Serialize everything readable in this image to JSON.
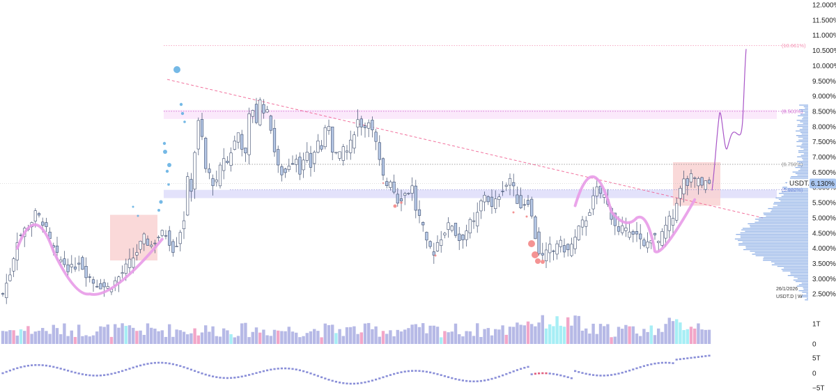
{
  "symbol_badge": "USDT.D",
  "last_price_label": "6.130%",
  "stamp": {
    "date": "26/1/2026",
    "ticker_interval": "USDT.D | W"
  },
  "colors": {
    "up_fill": "#ffffff",
    "candle_outline": "#3b4a6b",
    "down_fill": "#b6c8e6",
    "trendline": "#f06292",
    "highlight_curve": "#e89be8",
    "projection": "#a855c7",
    "zone_fill": "#f9d2d2",
    "band_fill": "#e3e2fb",
    "volume_bar": "#b6b9e6",
    "volume_pink": "#f2a6c8",
    "volume_cyan": "#a7eef5",
    "profile": "#5f8fdc",
    "dot_blue": "#5dade2",
    "dot_red": "#f28080"
  },
  "chart_data": [
    {
      "type": "candlestick",
      "title": "",
      "ylabel": "",
      "y_scale": "percent",
      "ylim": [
        2.0,
        12.0
      ],
      "y_ticks": [
        "12.000%",
        "11.500%",
        "11.000%",
        "10.500%",
        "10.000%",
        "9.500%",
        "9.000%",
        "8.500%",
        "8.000%",
        "7.500%",
        "7.000%",
        "6.500%",
        "6.000%",
        "5.500%",
        "5.000%",
        "4.500%",
        "4.000%",
        "3.500%",
        "3.000%",
        "2.500%"
      ],
      "y_tick_values": [
        12.0,
        11.5,
        11.0,
        10.5,
        10.0,
        9.5,
        9.0,
        8.5,
        8.0,
        7.5,
        7.0,
        6.5,
        6.0,
        5.5,
        5.0,
        4.5,
        4.0,
        3.5,
        3.0,
        2.5
      ],
      "horizontal_levels": [
        {
          "label": "(10.661%)",
          "value": 10.661,
          "style": "dotted",
          "color": "#f48fb1"
        },
        {
          "label": "(8.503%)",
          "value": 8.503,
          "style": "dotted",
          "color": "#cf6ad1"
        },
        {
          "label": "(6.759%)",
          "value": 6.759,
          "style": "dotted",
          "color": "#888888"
        },
        {
          "label": "(5.922%)",
          "value": 5.922,
          "style": "dotted",
          "color": "#8f8fdc"
        }
      ],
      "last_value": 6.13,
      "close_path": [
        [
          0,
          2.5
        ],
        [
          2,
          3.2
        ],
        [
          4,
          4.3
        ],
        [
          6,
          4.6
        ],
        [
          8,
          4.9
        ],
        [
          9,
          5.1
        ],
        [
          11,
          4.9
        ],
        [
          13,
          4.2
        ],
        [
          15,
          3.7
        ],
        [
          17,
          3.5
        ],
        [
          19,
          3.3
        ],
        [
          21,
          3.6
        ],
        [
          23,
          3.2
        ],
        [
          25,
          2.9
        ],
        [
          27,
          2.8
        ],
        [
          29,
          2.7
        ],
        [
          31,
          2.9
        ],
        [
          33,
          3.2
        ],
        [
          35,
          3.5
        ],
        [
          37,
          3.9
        ],
        [
          39,
          4.3
        ],
        [
          41,
          4.1
        ],
        [
          43,
          4.4
        ],
        [
          45,
          4.5
        ],
        [
          47,
          4.0
        ],
        [
          48,
          4.2
        ],
        [
          49,
          4.6
        ],
        [
          50,
          5.0
        ],
        [
          51,
          6.2
        ],
        [
          52,
          6.0
        ],
        [
          53,
          7.2
        ],
        [
          54,
          8.1
        ],
        [
          55,
          7.6
        ],
        [
          56,
          6.6
        ],
        [
          57,
          6.4
        ],
        [
          58,
          6.2
        ],
        [
          59,
          6.1
        ],
        [
          60,
          6.6
        ],
        [
          61,
          7.0
        ],
        [
          62,
          6.8
        ],
        [
          63,
          7.2
        ],
        [
          64,
          7.5
        ],
        [
          65,
          7.8
        ],
        [
          66,
          7.4
        ],
        [
          67,
          7.0
        ],
        [
          68,
          8.3
        ],
        [
          69,
          8.6
        ],
        [
          70,
          8.2
        ],
        [
          71,
          8.8
        ],
        [
          72,
          8.6
        ],
        [
          73,
          8.4
        ],
        [
          74,
          8.0
        ],
        [
          75,
          7.2
        ],
        [
          76,
          6.6
        ],
        [
          77,
          6.5
        ],
        [
          78,
          6.5
        ],
        [
          79,
          6.8
        ],
        [
          80,
          6.9
        ],
        [
          81,
          7.0
        ],
        [
          82,
          6.6
        ],
        [
          83,
          6.8
        ],
        [
          84,
          7.0
        ],
        [
          85,
          6.7
        ],
        [
          86,
          7.2
        ],
        [
          87,
          7.5
        ],
        [
          88,
          7.3
        ],
        [
          89,
          7.8
        ],
        [
          90,
          8.1
        ],
        [
          91,
          7.3
        ],
        [
          92,
          7.1
        ],
        [
          93,
          7.0
        ],
        [
          94,
          7.3
        ],
        [
          95,
          7.2
        ],
        [
          96,
          7.4
        ],
        [
          97,
          7.9
        ],
        [
          98,
          8.2
        ],
        [
          99,
          8.1
        ],
        [
          100,
          8.0
        ],
        [
          101,
          8.3
        ],
        [
          102,
          7.8
        ],
        [
          103,
          7.4
        ],
        [
          104,
          6.8
        ],
        [
          105,
          6.3
        ],
        [
          106,
          6.1
        ],
        [
          107,
          6.3
        ],
        [
          108,
          5.9
        ],
        [
          109,
          5.6
        ],
        [
          110,
          5.7
        ],
        [
          111,
          5.8
        ],
        [
          112,
          5.9
        ],
        [
          113,
          6.0
        ],
        [
          114,
          5.3
        ],
        [
          115,
          5.0
        ],
        [
          116,
          4.6
        ],
        [
          117,
          4.1
        ],
        [
          118,
          4.0
        ],
        [
          119,
          3.9
        ],
        [
          120,
          4.2
        ],
        [
          121,
          4.4
        ],
        [
          122,
          4.6
        ],
        [
          123,
          4.7
        ],
        [
          124,
          4.8
        ],
        [
          125,
          4.5
        ],
        [
          126,
          4.3
        ],
        [
          127,
          4.4
        ],
        [
          128,
          4.6
        ],
        [
          129,
          4.8
        ],
        [
          130,
          4.8
        ],
        [
          131,
          5.1
        ],
        [
          132,
          5.5
        ],
        [
          133,
          5.8
        ],
        [
          134,
          5.6
        ],
        [
          135,
          5.3
        ],
        [
          136,
          5.5
        ],
        [
          137,
          5.8
        ],
        [
          138,
          6.0
        ],
        [
          139,
          6.1
        ],
        [
          140,
          6.3
        ],
        [
          141,
          5.9
        ],
        [
          142,
          5.6
        ],
        [
          143,
          5.4
        ],
        [
          144,
          5.5
        ],
        [
          145,
          5.6
        ],
        [
          146,
          5.0
        ],
        [
          147,
          4.4
        ],
        [
          148,
          3.9
        ],
        [
          149,
          3.7
        ],
        [
          150,
          3.8
        ],
        [
          151,
          4.0
        ],
        [
          152,
          3.9
        ],
        [
          153,
          4.2
        ],
        [
          154,
          4.1
        ],
        [
          155,
          4.0
        ],
        [
          156,
          3.9
        ],
        [
          157,
          4.1
        ],
        [
          158,
          4.3
        ],
        [
          159,
          4.6
        ],
        [
          160,
          4.8
        ],
        [
          161,
          5.0
        ],
        [
          162,
          5.3
        ],
        [
          163,
          5.6
        ],
        [
          164,
          5.9
        ],
        [
          165,
          5.8
        ],
        [
          166,
          5.7
        ],
        [
          167,
          5.4
        ],
        [
          168,
          5.1
        ],
        [
          169,
          4.8
        ],
        [
          170,
          4.5
        ],
        [
          171,
          4.6
        ],
        [
          172,
          4.5
        ],
        [
          173,
          4.7
        ],
        [
          174,
          4.6
        ],
        [
          175,
          4.4
        ],
        [
          176,
          4.2
        ],
        [
          177,
          4.0
        ],
        [
          178,
          4.2
        ],
        [
          179,
          4.4
        ],
        [
          180,
          4.3
        ],
        [
          181,
          4.2
        ],
        [
          182,
          4.4
        ],
        [
          183,
          4.7
        ],
        [
          184,
          4.9
        ],
        [
          185,
          5.0
        ],
        [
          186,
          5.6
        ],
        [
          187,
          5.9
        ],
        [
          188,
          6.2
        ],
        [
          189,
          6.1
        ],
        [
          190,
          6.3
        ],
        [
          191,
          6.2
        ],
        [
          192,
          6.3
        ],
        [
          193,
          6.0
        ],
        [
          194,
          6.1
        ],
        [
          195,
          6.13
        ]
      ],
      "annotations": {
        "trendline_descending": [
          [
            9.55
          ],
          [
            5.0
          ]
        ],
        "support_band": [
          5.65,
          5.92
        ],
        "resistance_band": [
          8.25,
          8.55
        ],
        "zones": [
          "left_box",
          "right_box"
        ],
        "projection_target": 10.55
      }
    },
    {
      "type": "bar",
      "title": "",
      "y_ticks": [
        "1T",
        "0"
      ],
      "y_tick_values": [
        1,
        0
      ]
    },
    {
      "type": "line",
      "title": "",
      "y_ticks": [
        "5T",
        "0",
        "−5T"
      ],
      "y_tick_values": [
        5,
        0,
        -5
      ]
    }
  ]
}
